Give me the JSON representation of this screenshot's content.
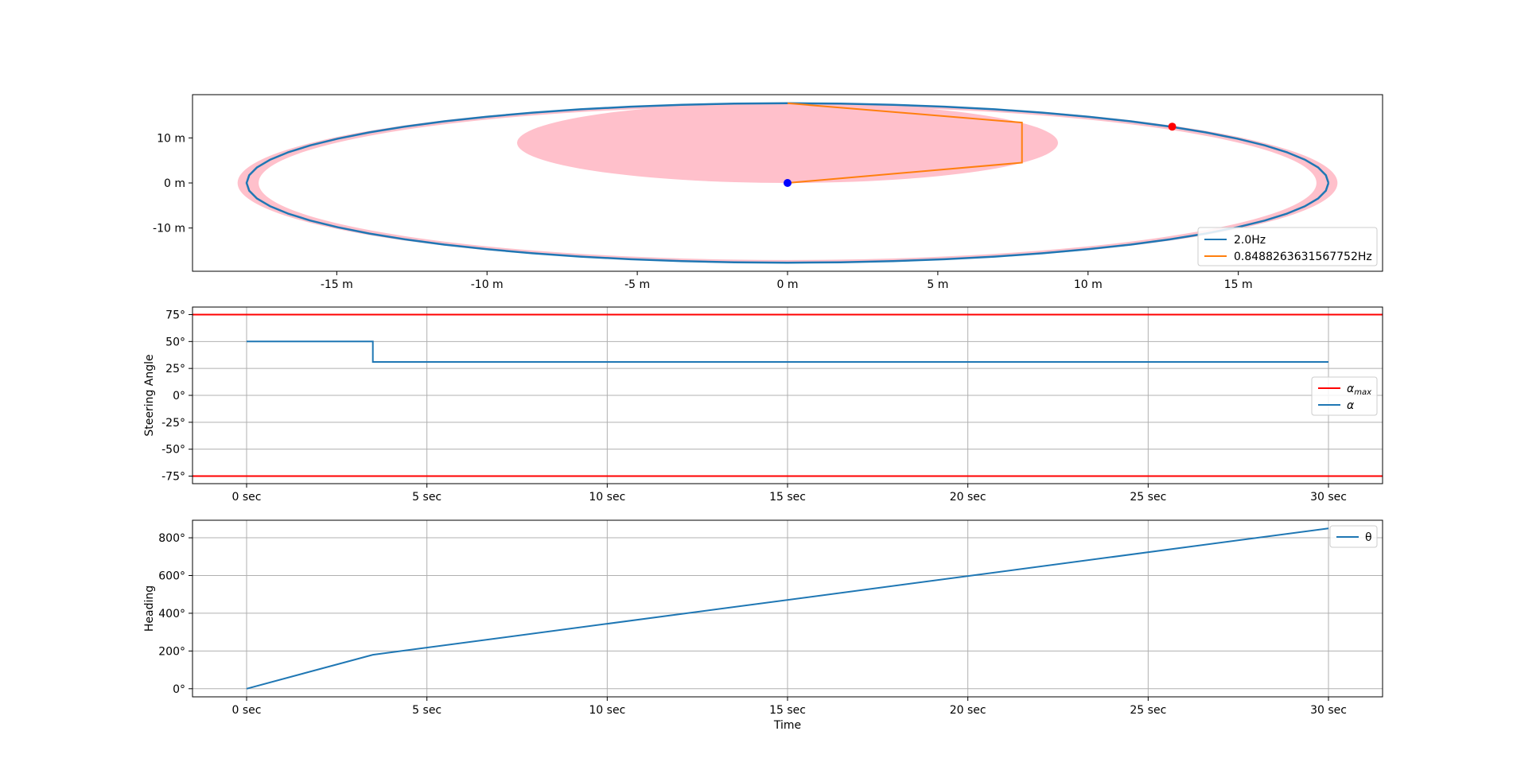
{
  "chart_data": [
    {
      "type": "line",
      "panel": "trajectory",
      "xlim": [
        -19.8,
        19.8
      ],
      "ylim": [
        -19.6,
        19.6
      ],
      "xticks": [
        -15,
        -10,
        -5,
        0,
        5,
        10,
        15
      ],
      "xtick_labels": [
        "-15 m",
        "-10 m",
        "-5 m",
        "0 m",
        "5 m",
        "10 m",
        "15 m"
      ],
      "yticks": [
        -10,
        0,
        10
      ],
      "ytick_labels": [
        "-10 m",
        "0 m",
        "10 m"
      ],
      "grid": false,
      "legend_position": "lower-right",
      "shaded_regions": [
        {
          "shape": "ellipse-ring",
          "color": "#ffc0cb",
          "cx": 0,
          "cy": 0,
          "outer_rx": 18.3,
          "outer_ry": 17.8,
          "inner_rx": 17.6,
          "inner_ry": 17.1
        },
        {
          "shape": "ellipse",
          "color": "#ffc0cb",
          "cx": 0,
          "cy": 8.9,
          "rx": 9.0,
          "ry": 8.9
        }
      ],
      "series": [
        {
          "name": "2.0Hz",
          "color": "#1f77b4",
          "shape": "ellipse",
          "cx": 0,
          "cy": 0,
          "rx": 18.0,
          "ry": 17.7
        },
        {
          "name": "0.8488263631567752Hz",
          "color": "#ff7f0e",
          "x": [
            0,
            7.8,
            7.8,
            0
          ],
          "y": [
            17.7,
            13.4,
            4.5,
            0
          ]
        }
      ],
      "markers": [
        {
          "x": 0,
          "y": 0,
          "color": "#0000ff"
        },
        {
          "x": 12.8,
          "y": 12.5,
          "color": "#ff0000"
        }
      ]
    },
    {
      "type": "line",
      "panel": "steering",
      "ylabel": "Steering Angle",
      "xlim": [
        -1.5,
        31.5
      ],
      "ylim": [
        -82,
        82
      ],
      "xticks": [
        0,
        5,
        10,
        15,
        20,
        25,
        30
      ],
      "xtick_labels": [
        "0 sec",
        "5 sec",
        "10 sec",
        "15 sec",
        "20 sec",
        "25 sec",
        "30 sec"
      ],
      "yticks": [
        -75,
        -50,
        -25,
        0,
        25,
        50,
        75
      ],
      "ytick_labels": [
        "-75°",
        "-50°",
        "-25°",
        "0°",
        "25°",
        "50°",
        "75°"
      ],
      "grid": true,
      "legend_position": "center-right",
      "legend_labels": [
        {
          "main": "α",
          "sub": "max"
        },
        {
          "main": "α",
          "sub": ""
        }
      ],
      "series": [
        {
          "color": "#ff0000",
          "hlines": [
            75,
            -75
          ]
        },
        {
          "color": "#1f77b4",
          "x": [
            0,
            3.5,
            3.5,
            30
          ],
          "y": [
            50,
            50,
            31,
            31
          ]
        }
      ]
    },
    {
      "type": "line",
      "panel": "heading",
      "ylabel": "Heading",
      "xlabel": "Time",
      "xlim": [
        -1.5,
        31.5
      ],
      "ylim": [
        -43,
        893
      ],
      "xticks": [
        0,
        5,
        10,
        15,
        20,
        25,
        30
      ],
      "xtick_labels": [
        "0 sec",
        "5 sec",
        "10 sec",
        "15 sec",
        "20 sec",
        "25 sec",
        "30 sec"
      ],
      "yticks": [
        0,
        200,
        400,
        600,
        800
      ],
      "ytick_labels": [
        "0°",
        "200°",
        "400°",
        "600°",
        "800°"
      ],
      "grid": true,
      "legend_position": "top-right",
      "series": [
        {
          "name": "θ",
          "color": "#1f77b4",
          "x": [
            0,
            3.5,
            30
          ],
          "y": [
            0,
            180,
            850
          ]
        }
      ]
    }
  ]
}
